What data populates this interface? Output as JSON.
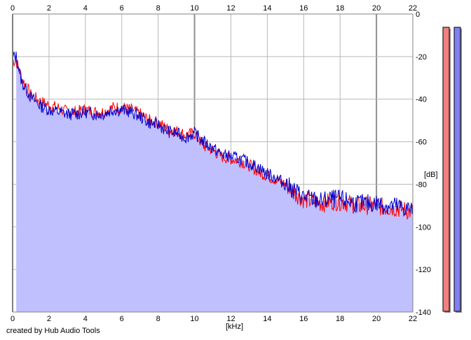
{
  "credit": "created by Hub Audio Tools",
  "chart_data": {
    "type": "area",
    "xlabel": "[kHz]",
    "ylabel": "[dB]",
    "xlim": [
      0,
      22
    ],
    "ylim": [
      -140,
      0
    ],
    "x_ticks": [
      0,
      2,
      4,
      6,
      8,
      10,
      12,
      14,
      16,
      18,
      20,
      22
    ],
    "y_ticks": [
      0,
      -20,
      -40,
      -60,
      -80,
      -100,
      -120,
      -140
    ],
    "grid": true,
    "x": [
      0.2,
      0.5,
      1,
      1.5,
      2,
      2.5,
      3,
      3.5,
      4,
      4.5,
      5,
      5.5,
      6,
      6.5,
      7,
      7.5,
      8,
      8.5,
      9,
      9.5,
      10,
      10.5,
      11,
      11.5,
      12,
      12.5,
      13,
      13.5,
      14,
      14.5,
      15,
      15.5,
      16,
      16.5,
      17,
      17.5,
      18,
      18.5,
      19,
      19.5,
      20,
      20.5,
      21,
      21.5,
      22
    ],
    "series": [
      {
        "color": "#ff0000",
        "values": [
          -22,
          -30,
          -38,
          -41,
          -43,
          -44,
          -46,
          -46,
          -45,
          -46,
          -46,
          -44,
          -44,
          -45,
          -47,
          -50,
          -51,
          -54,
          -55,
          -57,
          -56,
          -62,
          -64,
          -67,
          -68,
          -69,
          -71,
          -74,
          -76,
          -78,
          -80,
          -84,
          -87,
          -88,
          -89,
          -88,
          -88,
          -89,
          -90,
          -90,
          -90,
          -91,
          -91,
          -92,
          -93
        ]
      },
      {
        "color": "#0000cc",
        "values": [
          -20,
          -32,
          -39,
          -43,
          -45,
          -46,
          -47,
          -47,
          -46,
          -47,
          -47,
          -45,
          -45,
          -46,
          -48,
          -51,
          -52,
          -55,
          -56,
          -58,
          -56,
          -60,
          -63,
          -66,
          -67,
          -68,
          -70,
          -72,
          -75,
          -77,
          -80,
          -83,
          -86,
          -87,
          -88,
          -87,
          -87,
          -88,
          -89,
          -89,
          -89,
          -90,
          -90,
          -91,
          -92
        ]
      }
    ]
  },
  "meters": {
    "left_color": "#f08080",
    "right_color": "#8080f0"
  }
}
